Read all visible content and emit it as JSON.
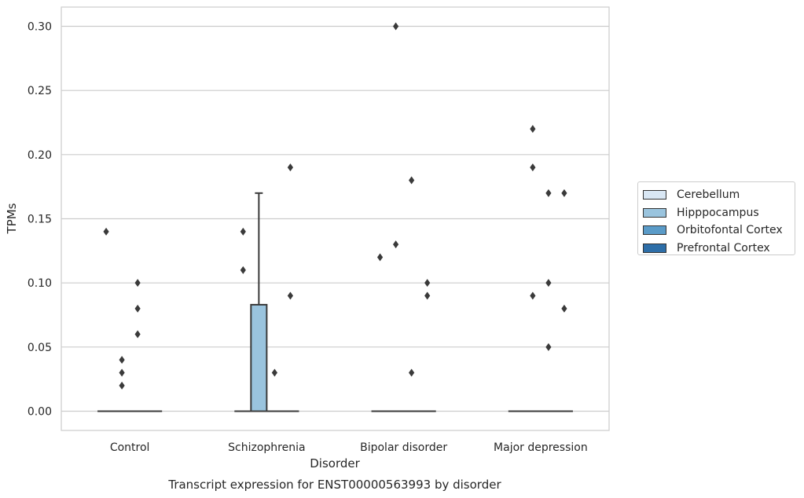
{
  "chart_data": {
    "type": "box",
    "title": "Transcript expression for ENST00000563993 by disorder",
    "xlabel": "Disorder",
    "ylabel": "TPMs",
    "ylim": [
      -0.015,
      0.315
    ],
    "yticks": [
      0.0,
      0.05,
      0.1,
      0.15,
      0.2,
      0.25,
      0.3
    ],
    "ytick_labels": [
      "0.00",
      "0.05",
      "0.10",
      "0.15",
      "0.20",
      "0.25",
      "0.30"
    ],
    "grid": true,
    "legend_position": "right",
    "categories": [
      "Control",
      "Schizophrenia",
      "Bipolar disorder",
      "Major depression"
    ],
    "series": [
      {
        "name": "Cerebellum",
        "color": "#d9e7f4",
        "boxes": [
          {
            "q1": 0,
            "median": 0,
            "q3": 0,
            "whisker_low": 0,
            "whisker_high": 0,
            "outliers": [
              0.14
            ]
          },
          {
            "q1": 0,
            "median": 0,
            "q3": 0,
            "whisker_low": 0,
            "whisker_high": 0,
            "outliers": [
              0.14,
              0.11
            ]
          },
          {
            "q1": 0,
            "median": 0,
            "q3": 0,
            "whisker_low": 0,
            "whisker_high": 0,
            "outliers": [
              0.12
            ]
          },
          {
            "q1": 0,
            "median": 0,
            "q3": 0,
            "whisker_low": 0,
            "whisker_high": 0,
            "outliers": []
          }
        ]
      },
      {
        "name": "Hipppocampus",
        "color": "#9ac4de",
        "boxes": [
          {
            "q1": 0,
            "median": 0,
            "q3": 0,
            "whisker_low": 0,
            "whisker_high": 0,
            "outliers": [
              0.04,
              0.03,
              0.02
            ]
          },
          {
            "q1": 0,
            "median": 0,
            "q3": 0.083,
            "whisker_low": 0,
            "whisker_high": 0.17,
            "outliers": []
          },
          {
            "q1": 0,
            "median": 0,
            "q3": 0,
            "whisker_low": 0,
            "whisker_high": 0,
            "outliers": [
              0.3,
              0.13
            ]
          },
          {
            "q1": 0,
            "median": 0,
            "q3": 0,
            "whisker_low": 0,
            "whisker_high": 0,
            "outliers": [
              0.22,
              0.19,
              0.09
            ]
          }
        ]
      },
      {
        "name": "Orbitofontal Cortex",
        "color": "#5a9bc8",
        "boxes": [
          {
            "q1": 0,
            "median": 0,
            "q3": 0,
            "whisker_low": 0,
            "whisker_high": 0,
            "outliers": [
              0.1,
              0.08,
              0.06
            ]
          },
          {
            "q1": 0,
            "median": 0,
            "q3": 0,
            "whisker_low": 0,
            "whisker_high": 0,
            "outliers": [
              0.03
            ]
          },
          {
            "q1": 0,
            "median": 0,
            "q3": 0,
            "whisker_low": 0,
            "whisker_high": 0,
            "outliers": [
              0.18,
              0.03
            ]
          },
          {
            "q1": 0,
            "median": 0,
            "q3": 0,
            "whisker_low": 0,
            "whisker_high": 0,
            "outliers": [
              0.17,
              0.1,
              0.05
            ]
          }
        ]
      },
      {
        "name": "Prefrontal Cortex",
        "color": "#2d6ea8",
        "boxes": [
          {
            "q1": 0,
            "median": 0,
            "q3": 0,
            "whisker_low": 0,
            "whisker_high": 0,
            "outliers": []
          },
          {
            "q1": 0,
            "median": 0,
            "q3": 0,
            "whisker_low": 0,
            "whisker_high": 0,
            "outliers": [
              0.19,
              0.09
            ]
          },
          {
            "q1": 0,
            "median": 0,
            "q3": 0,
            "whisker_low": 0,
            "whisker_high": 0,
            "outliers": [
              0.1,
              0.09
            ]
          },
          {
            "q1": 0,
            "median": 0,
            "q3": 0,
            "whisker_low": 0,
            "whisker_high": 0,
            "outliers": [
              0.17,
              0.08
            ]
          }
        ]
      }
    ]
  }
}
